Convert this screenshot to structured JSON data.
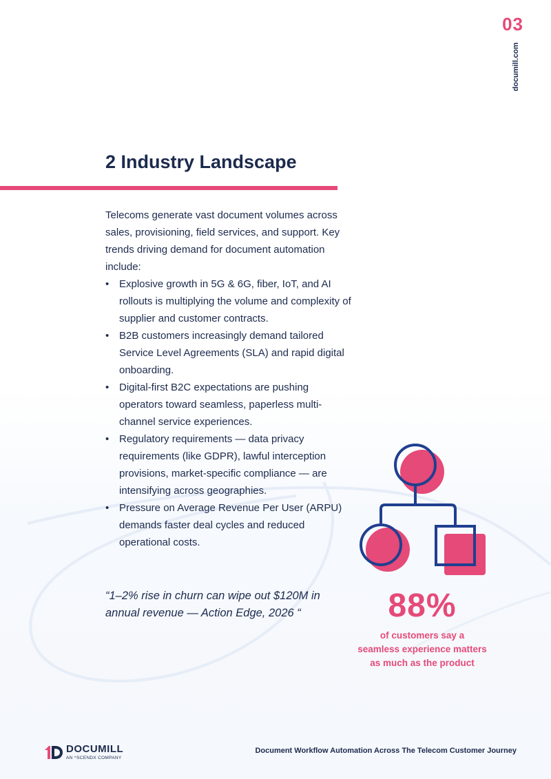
{
  "page": {
    "number": "03",
    "site": "documill.com"
  },
  "section": {
    "heading": "2 Industry Landscape",
    "intro": "Telecoms generate vast document volumes across sales, provisioning, field services, and support. Key trends driving demand for document automation include:",
    "bullet_glyph": "•",
    "bullets": [
      "Explosive growth in 5G & 6G, fiber, IoT, and AI rollouts is multiplying the volume and complexity of supplier and customer contracts.",
      "B2B customers increasingly demand tailored Service Level Agreements (SLA) and rapid digital onboarding.",
      "Digital-first B2C expectations are pushing operators toward seamless, paperless multi-channel service experiences.",
      "Regulatory requirements — data privacy requirements (like GDPR), lawful interception provisions, market-specific compliance — are intensifying across geographies.",
      "Pressure on Average Revenue Per User (ARPU) demands faster deal cycles and reduced operational costs."
    ]
  },
  "quote": {
    "text": "“1–2% rise in churn can wipe out $120M in annual revenue  — Action Edge, 2026 “"
  },
  "stat": {
    "value": "88%",
    "caption_lines": [
      "of customers say a",
      "seamless experience matters",
      "as much as the product"
    ],
    "icon": "hierarchy-diagram-icon"
  },
  "footer": {
    "logo_word": "DOCUMILL",
    "logo_tag": "AN ^SCENDX COMPANY",
    "document_title": "Document Workflow Automation Across The Telecom Customer Journey"
  },
  "colors": {
    "accent": "#e54a78",
    "navy": "#1c2a4d",
    "icon_stroke": "#1f3f8f"
  }
}
